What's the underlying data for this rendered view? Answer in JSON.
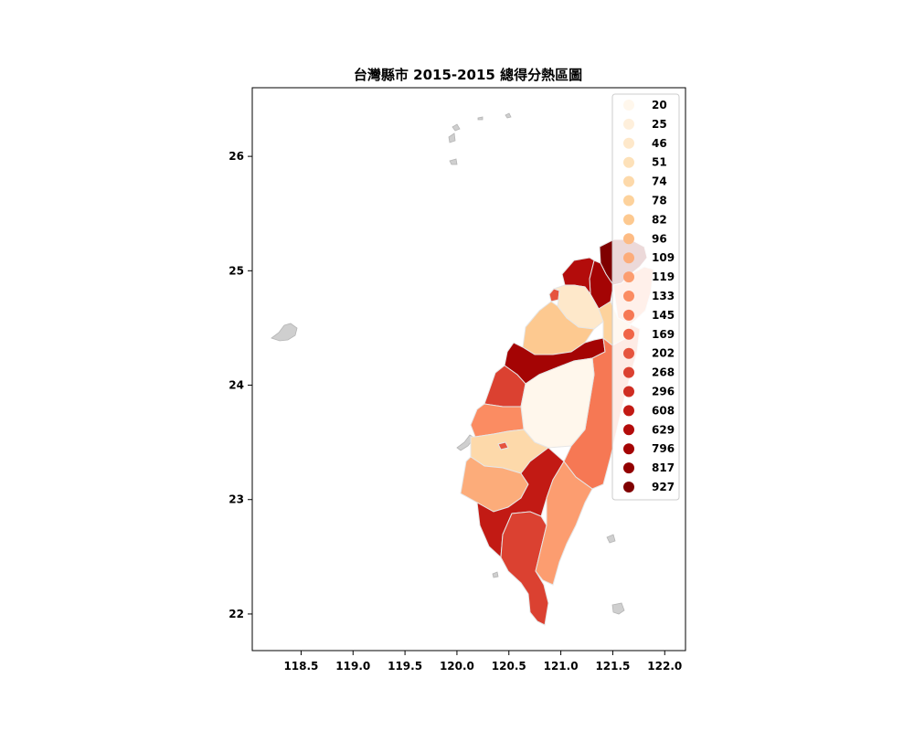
{
  "map": {
    "title": "台灣縣市 2015-2015 總得分熱區圖",
    "x_ticks": [
      "118.5",
      "119.0",
      "119.5",
      "120.0",
      "120.5",
      "121.0",
      "121.5",
      "122.0"
    ],
    "y_ticks": [
      "22",
      "23",
      "24",
      "25",
      "26"
    ],
    "xlim": [
      118.03,
      122.2
    ],
    "ylim": [
      21.68,
      26.6
    ],
    "colormap": "OrRd",
    "legend_placement": "top-right",
    "legend": [
      {
        "label": "20",
        "color": "#fff7ec"
      },
      {
        "label": "25",
        "color": "#feefdb"
      },
      {
        "label": "46",
        "color": "#fee8ca"
      },
      {
        "label": "51",
        "color": "#fde1b9"
      },
      {
        "label": "74",
        "color": "#fdd9aa"
      },
      {
        "label": "78",
        "color": "#fdd29c"
      },
      {
        "label": "82",
        "color": "#fdc990"
      },
      {
        "label": "96",
        "color": "#fdbb84"
      },
      {
        "label": "109",
        "color": "#fcac7a"
      },
      {
        "label": "119",
        "color": "#fc9d70"
      },
      {
        "label": "133",
        "color": "#fb8c62"
      },
      {
        "label": "145",
        "color": "#f67854"
      },
      {
        "label": "169",
        "color": "#f06548"
      },
      {
        "label": "202",
        "color": "#e6543e"
      },
      {
        "label": "268",
        "color": "#db4131"
      },
      {
        "label": "296",
        "color": "#cf2d22"
      },
      {
        "label": "608",
        "color": "#c21a14"
      },
      {
        "label": "629",
        "color": "#b30c0b"
      },
      {
        "label": "796",
        "color": "#a40404"
      },
      {
        "label": "817",
        "color": "#920000"
      },
      {
        "label": "927",
        "color": "#7f0000"
      }
    ]
  }
}
